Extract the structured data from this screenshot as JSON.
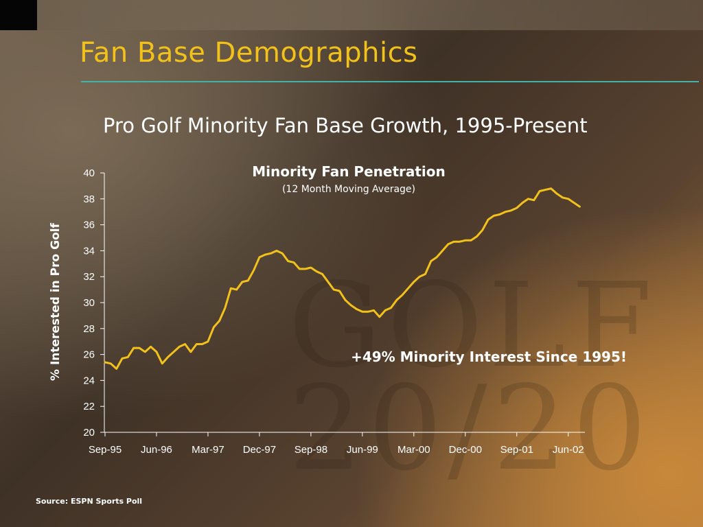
{
  "slide": {
    "title": "Fan Base Demographics",
    "subtitle": "Pro Golf Minority Fan Base Growth, 1995-Present",
    "source": "Source:  ESPN Sports Poll",
    "watermark": "GOLF 20/20"
  },
  "colors": {
    "title": "#f2c21a",
    "rule": "#3fb4a8",
    "series": "#f2c21a"
  },
  "chart_data": {
    "type": "line",
    "title": "Minority Fan Penetration",
    "subtitle": "(12 Month Moving Average)",
    "xlabel": "",
    "ylabel": "% Interested in Pro Golf",
    "ylim": [
      20,
      40
    ],
    "yticks": [
      20,
      22,
      24,
      26,
      28,
      30,
      32,
      34,
      36,
      38,
      40
    ],
    "grid": false,
    "legend": "none",
    "x_tick_labels": [
      "Sep-95",
      "Jun-96",
      "Mar-97",
      "Dec-97",
      "Sep-98",
      "Jun-99",
      "Mar-00",
      "Dec-00",
      "Sep-01",
      "Jun-02"
    ],
    "x_tick_interval_months": 9,
    "annotation": "+49% Minority Interest Since 1995!",
    "series": [
      {
        "start": "Sep-95",
        "values": [
          25.4,
          25.3,
          24.9,
          25.7,
          25.8,
          26.5,
          26.5,
          26.2,
          26.6,
          26.2,
          25.3,
          25.8,
          26.2,
          26.6,
          26.8,
          26.2,
          26.8,
          26.8,
          27.0,
          28.1,
          28.6,
          29.6,
          31.1,
          31.0,
          31.6,
          31.7,
          32.5,
          33.5,
          33.7,
          33.8,
          34.0,
          33.8,
          33.2,
          33.1,
          32.6,
          32.6,
          32.7,
          32.4,
          32.2,
          31.6,
          31.0,
          30.9,
          30.2,
          29.8,
          29.5,
          29.3,
          29.3,
          29.4,
          28.9,
          29.4,
          29.6,
          30.2,
          30.6,
          31.1,
          31.6,
          32.0,
          32.2,
          33.2,
          33.5,
          34.0,
          34.5,
          34.7,
          34.7,
          34.8,
          34.8,
          35.1,
          35.6,
          36.4,
          36.7,
          36.8,
          37.0,
          37.1,
          37.3,
          37.7,
          38.0,
          37.9,
          38.6,
          38.7,
          38.8,
          38.4,
          38.1,
          38.0,
          37.7,
          37.4
        ]
      }
    ]
  }
}
